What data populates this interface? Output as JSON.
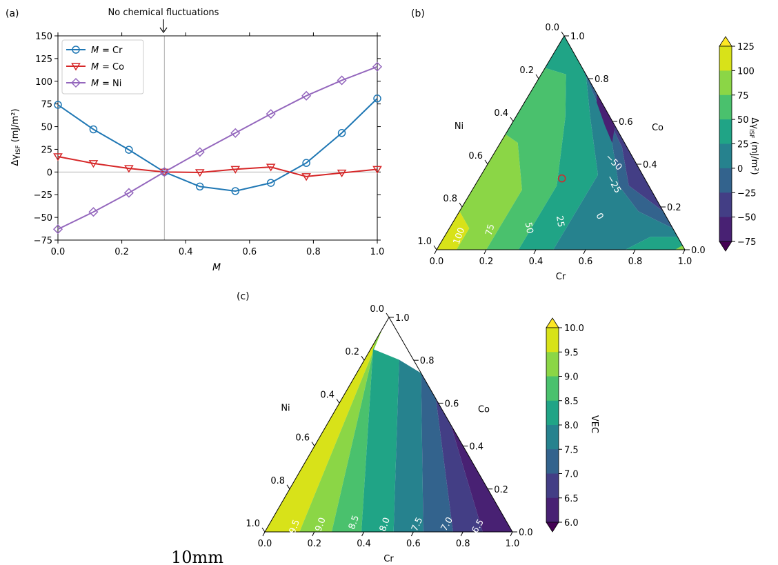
{
  "page": {
    "scale_label": "10mm"
  },
  "chart_data": [
    {
      "type": "line",
      "panel_label": "(a)",
      "annotation": "No chemical fluctuations",
      "annotation_x": 0.3333,
      "xlabel": "M",
      "ylabel": "Δγ",
      "ylabel_sub": "ISF",
      "ylabel_unit": " (mJ/m²)",
      "xlim": [
        0,
        1
      ],
      "ylim": [
        -75,
        150
      ],
      "xticks": [
        "0.0",
        "0.2",
        "0.4",
        "0.6",
        "0.8",
        "1.0"
      ],
      "yticks": [
        "−75",
        "−50",
        "−25",
        "0",
        "25",
        "50",
        "75",
        "100",
        "125",
        "150"
      ],
      "legend_position": "upper-left",
      "x": [
        0,
        0.1111,
        0.2222,
        0.3333,
        0.4444,
        0.5556,
        0.6667,
        0.7778,
        0.8889,
        1.0
      ],
      "series": [
        {
          "name_prefix": "M",
          "name": "= Cr",
          "color": "#1f77b4",
          "marker": "circle",
          "values": [
            74,
            47,
            24.5,
            0,
            -16,
            -21,
            -12,
            10,
            43,
            81
          ]
        },
        {
          "name_prefix": "M",
          "name": "= Co",
          "color": "#d62728",
          "marker": "triangle-down",
          "values": [
            17,
            9.5,
            4,
            0,
            -0.5,
            3,
            5.5,
            -5,
            -1,
            3
          ]
        },
        {
          "name_prefix": "M",
          "name": "= Ni",
          "color": "#9467bd",
          "marker": "diamond",
          "values": [
            -63,
            -44,
            -23,
            0,
            22,
            43,
            64,
            84,
            101,
            116
          ]
        }
      ]
    },
    {
      "type": "ternary-contour",
      "panel_label": "(b)",
      "axis_bottom": "Cr",
      "axis_left": "Ni",
      "axis_right": "Co",
      "bottom_ticks": [
        "0.0",
        "0.2",
        "0.4",
        "0.6",
        "0.8",
        "1.0"
      ],
      "left_ticks": [
        "1.0",
        "0.8",
        "0.6",
        "0.4",
        "0.2",
        "0.0"
      ],
      "right_ticks": [
        "0.0",
        "0.2",
        "0.4",
        "0.6",
        "0.8",
        "1.0"
      ],
      "contour_labels": [
        "100",
        "75",
        "50",
        "25",
        "0",
        "−25",
        "−50"
      ],
      "marker": {
        "label": "equiatomic point",
        "color": "#d62728"
      },
      "colorbar": {
        "label": "Δγ",
        "label_sub": "ISF",
        "label_unit": " (mJ/m²)",
        "ticks": [
          "125",
          "100",
          "75",
          "50",
          "25",
          "0",
          "−25",
          "−50",
          "−75"
        ],
        "colors": [
          "#d8e219",
          "#8bd646",
          "#4ac16d",
          "#20a486",
          "#26828e",
          "#33638d",
          "#433e85",
          "#482173"
        ],
        "extend_top": "#fde725",
        "extend_bottom": "#440154"
      }
    },
    {
      "type": "ternary-contour",
      "panel_label": "(c)",
      "axis_bottom": "Cr",
      "axis_left": "Ni",
      "axis_right": "Co",
      "bottom_ticks": [
        "0.0",
        "0.2",
        "0.4",
        "0.6",
        "0.8",
        "1.0"
      ],
      "left_ticks": [
        "1.0",
        "0.8",
        "0.6",
        "0.4",
        "0.2",
        "0.0"
      ],
      "right_ticks": [
        "0.0",
        "0.2",
        "0.4",
        "0.6",
        "0.8",
        "1.0"
      ],
      "contour_labels": [
        "9.5",
        "9.0",
        "8.5",
        "8.0",
        "7.5",
        "7.0",
        "6.5"
      ],
      "colorbar": {
        "label": "VEC",
        "ticks": [
          "10.0",
          "9.5",
          "9.0",
          "8.5",
          "8.0",
          "7.5",
          "7.0",
          "6.5",
          "6.0"
        ],
        "colors": [
          "#d8e219",
          "#8bd646",
          "#4ac16d",
          "#20a486",
          "#26828e",
          "#33638d",
          "#433e85",
          "#482173"
        ],
        "extend_top": "#fde725",
        "extend_bottom": "#440154"
      }
    }
  ]
}
